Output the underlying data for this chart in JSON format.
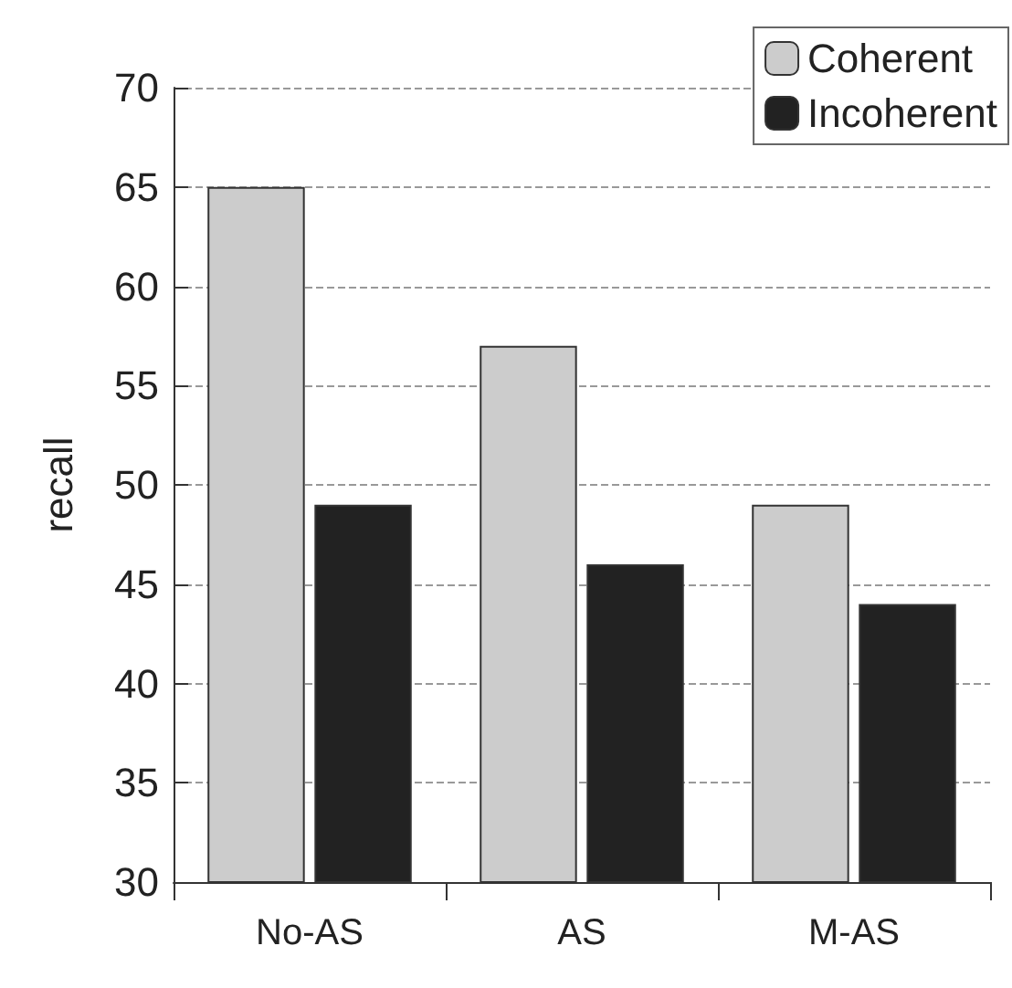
{
  "chart_data": {
    "type": "bar",
    "ylabel": "recall",
    "categories": [
      "No-AS",
      "AS",
      "M-AS"
    ],
    "series": [
      {
        "name": "Coherent",
        "color": "#cccccc",
        "values": [
          65,
          57,
          49
        ]
      },
      {
        "name": "Incoherent",
        "color": "#222222",
        "values": [
          49,
          46,
          44
        ]
      }
    ],
    "ylim": [
      30,
      70
    ],
    "yticks": [
      30,
      35,
      40,
      45,
      50,
      55,
      60,
      65,
      70
    ],
    "grid": "y",
    "legend": "top right"
  }
}
